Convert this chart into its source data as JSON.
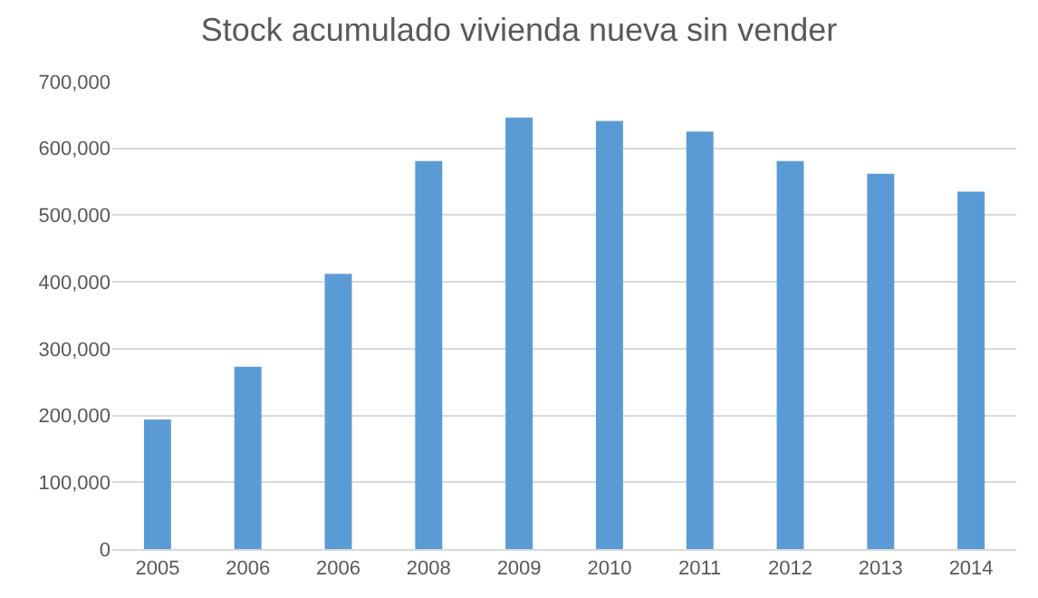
{
  "chart_data": {
    "type": "bar",
    "title": "Stock acumulado vivienda nueva sin vender",
    "categories": [
      "2005",
      "2006",
      "2006",
      "2008",
      "2009",
      "2010",
      "2011",
      "2012",
      "2013",
      "2014"
    ],
    "values": [
      194000,
      273000,
      412000,
      581000,
      646000,
      641000,
      625000,
      581000,
      562000,
      535000
    ],
    "color": "#5b9bd5",
    "ylim": [
      0,
      700000
    ],
    "yticks": [
      {
        "value": 0,
        "label": "0"
      },
      {
        "value": 100000,
        "label": "100,000"
      },
      {
        "value": 200000,
        "label": "200,000"
      },
      {
        "value": 300000,
        "label": "300,000"
      },
      {
        "value": 400000,
        "label": "400,000"
      },
      {
        "value": 500000,
        "label": "500,000"
      },
      {
        "value": 600000,
        "label": "600,000"
      },
      {
        "value": 700000,
        "label": "700,000"
      }
    ],
    "grid": "y"
  }
}
